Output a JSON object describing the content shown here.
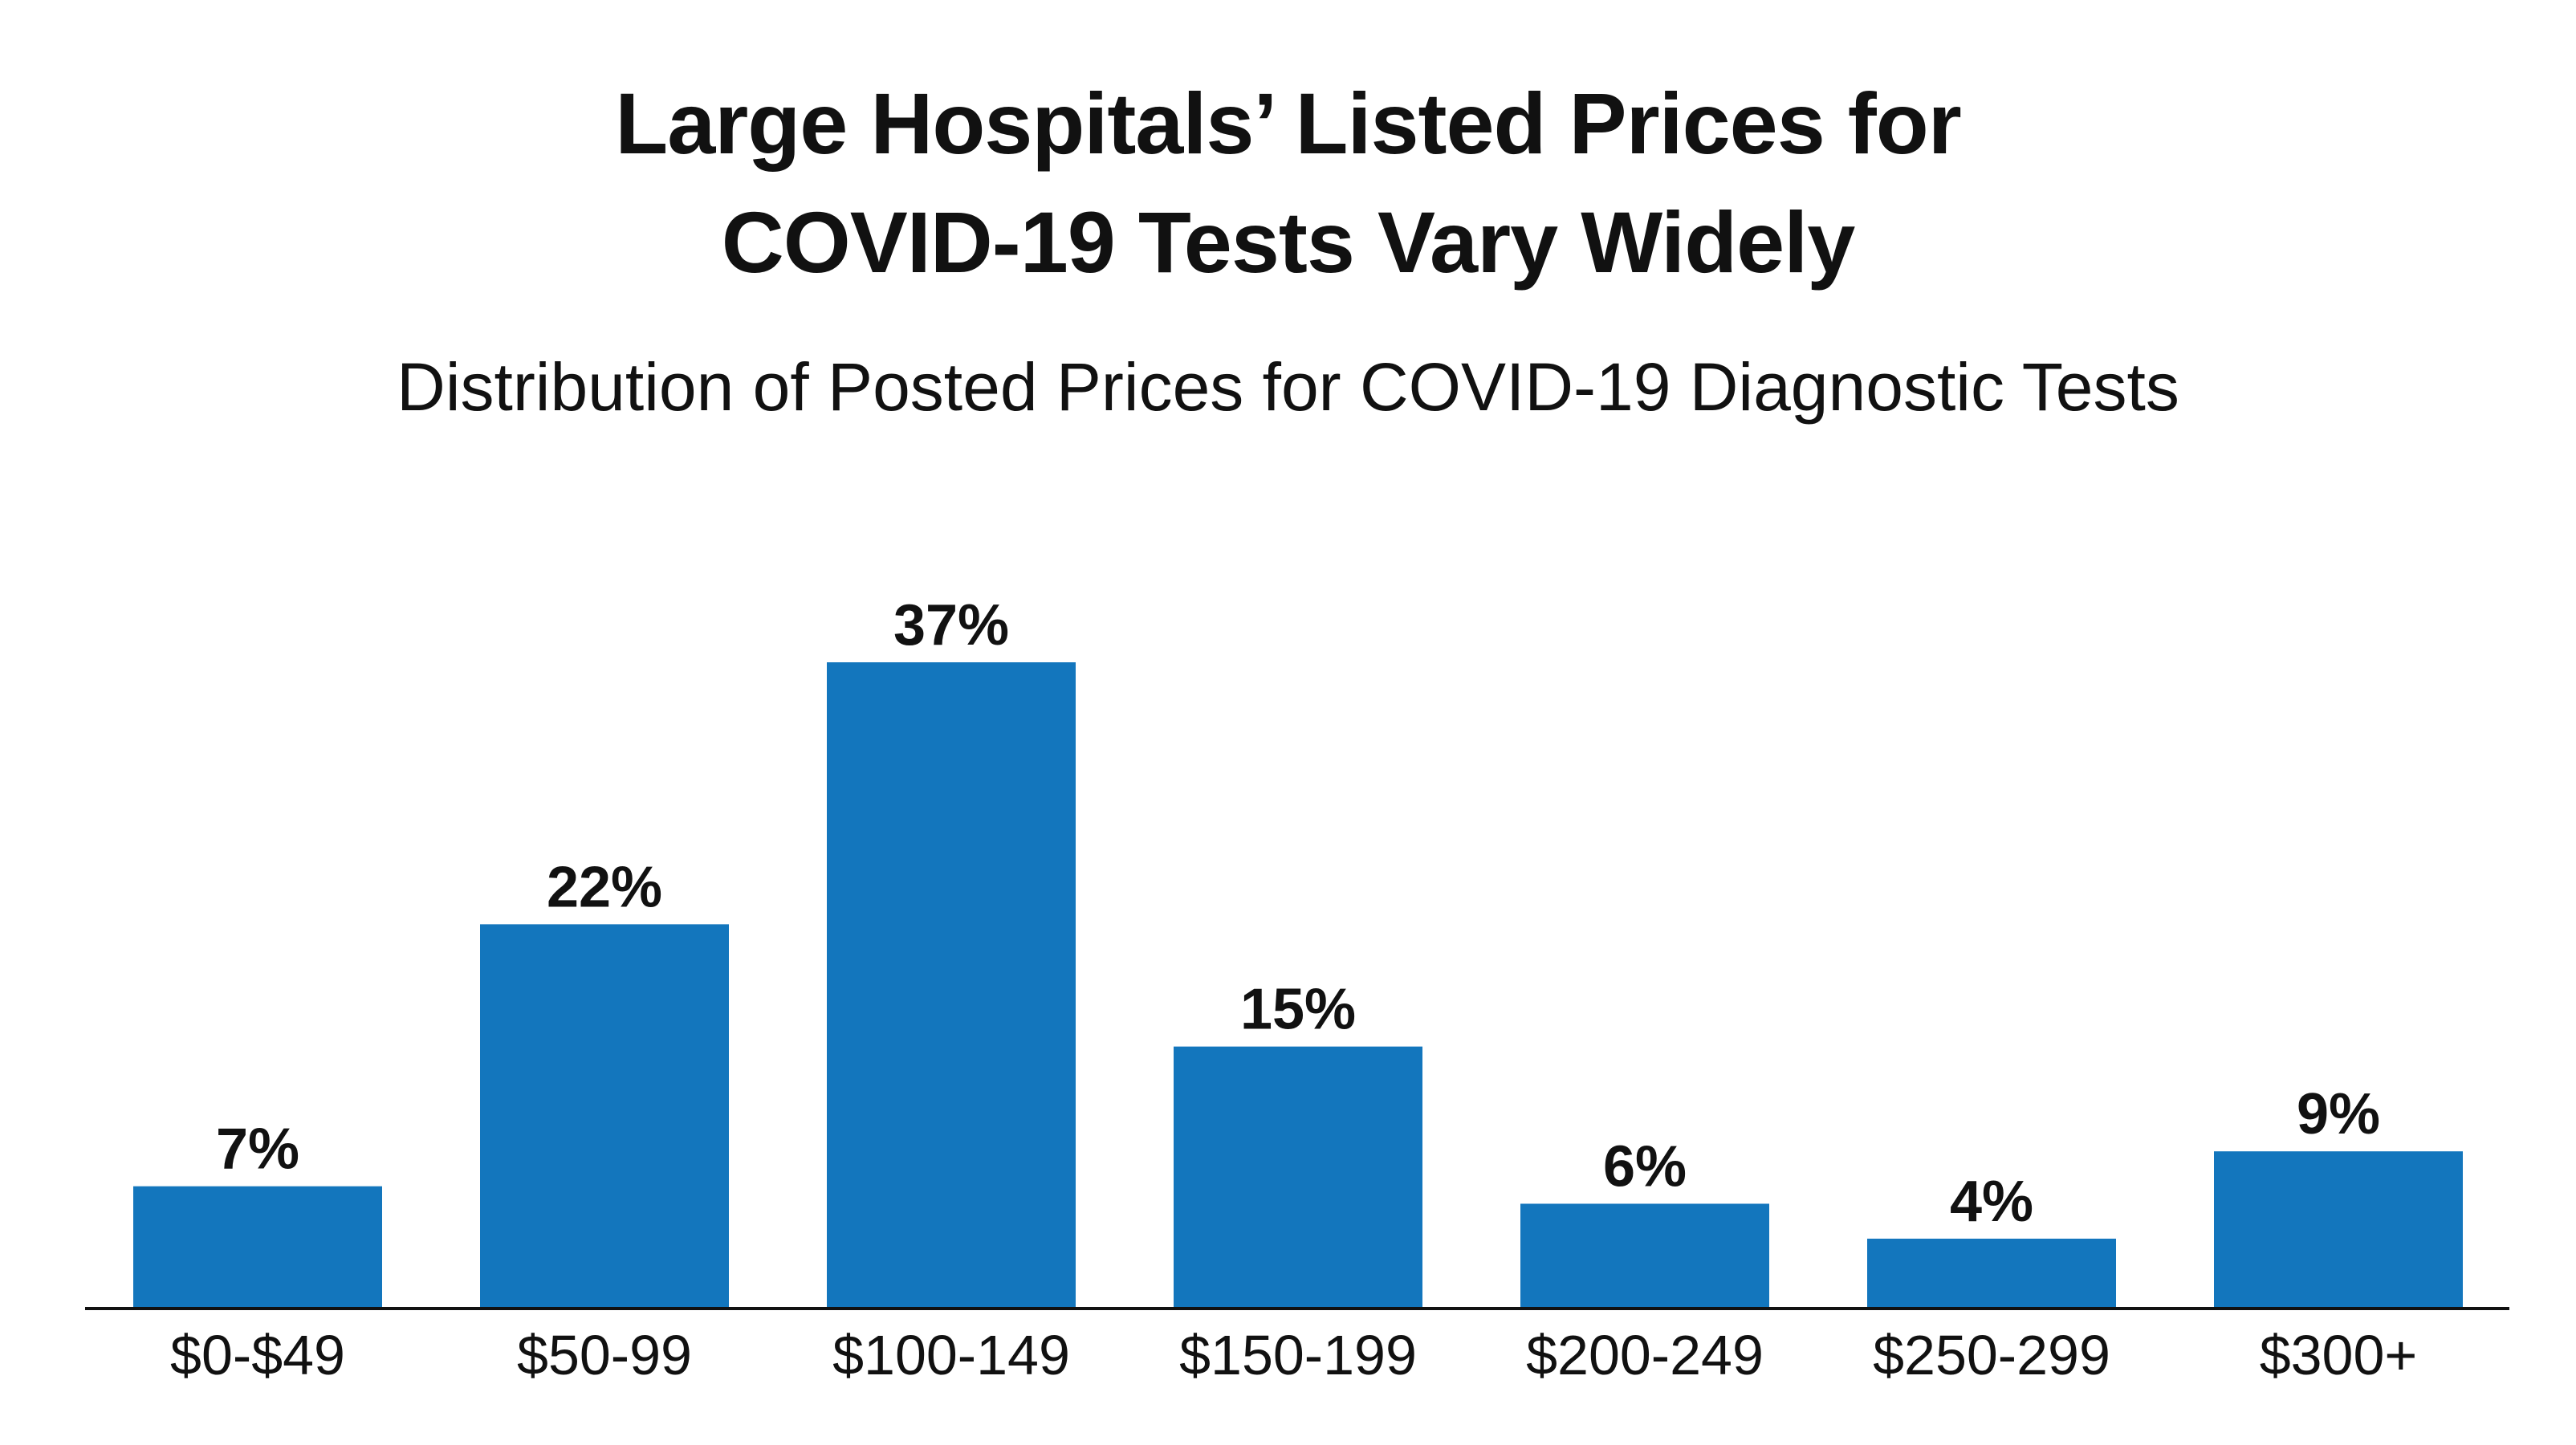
{
  "chart_data": {
    "type": "bar",
    "title_line1": "Large Hospitals’ Listed Prices for",
    "title_line2": "COVID-19 Tests Vary Widely",
    "subtitle": "Distribution of Posted Prices for COVID-19 Diagnostic Tests",
    "categories": [
      "$0-$49",
      "$50-99",
      "$100-149",
      "$150-199",
      "$200-249",
      "$250-299",
      "$300+"
    ],
    "values": [
      7,
      22,
      37,
      15,
      6,
      4,
      9
    ],
    "value_labels": [
      "7%",
      "22%",
      "37%",
      "15%",
      "6%",
      "4%",
      "9%"
    ],
    "xlabel": "",
    "ylabel": "",
    "ylim": [
      0,
      37
    ],
    "grid": false,
    "legend": "none",
    "bar_color": "#1376bd"
  }
}
